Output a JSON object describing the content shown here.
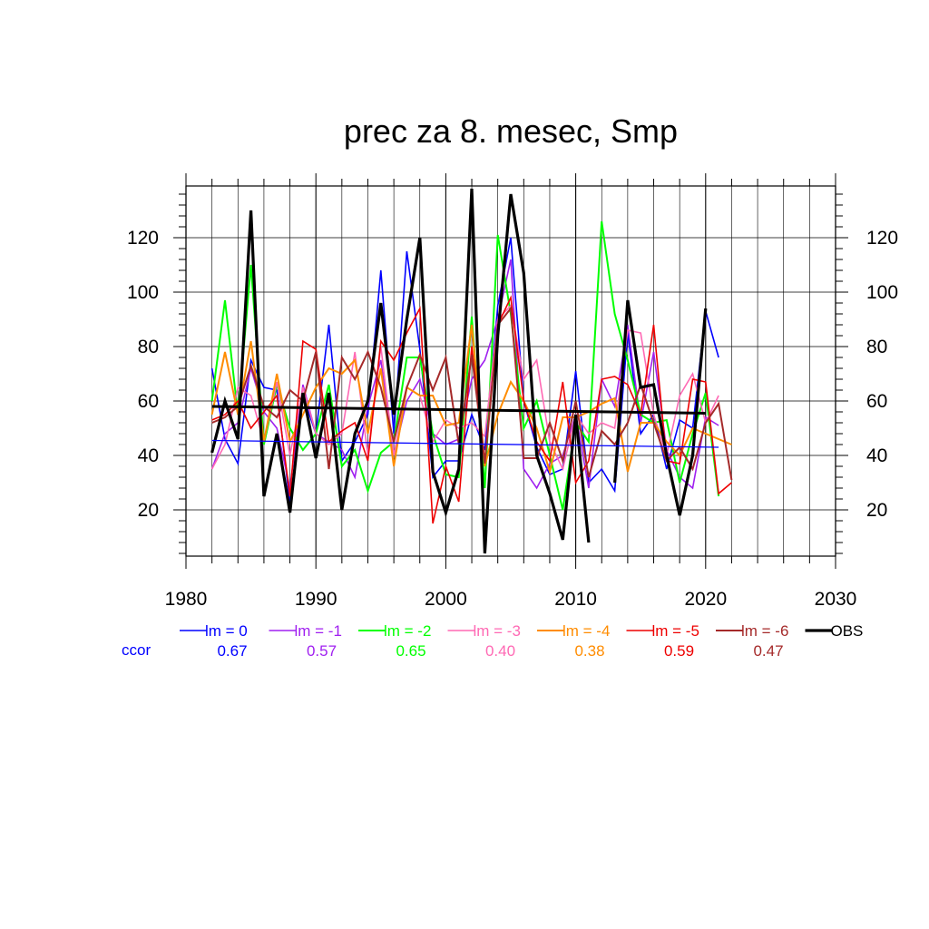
{
  "chart_data": {
    "type": "line",
    "title": "prec za 8. mesec, Smp",
    "xlim": [
      1980,
      2030
    ],
    "ylim": [
      3,
      139
    ],
    "x_ticks": [
      1980,
      1990,
      2000,
      2010,
      2020,
      2030
    ],
    "y_ticks": [
      20,
      40,
      60,
      80,
      100,
      120
    ],
    "grid": true,
    "legend_position": "bottom",
    "ccor_label": "ccor",
    "series": [
      {
        "name": "lm = 0",
        "ccor": "0.67",
        "color": "#0000ff",
        "width": 1.6,
        "x": [
          1982,
          1983,
          1984,
          1985,
          1986,
          1987,
          1988,
          1989,
          1990,
          1991,
          1992,
          1993,
          1994,
          1995,
          1996,
          1997,
          1998,
          1999,
          2000,
          2001,
          2002,
          2003,
          2004,
          2005,
          2006,
          2007,
          2008,
          2009,
          2010,
          2011,
          2012,
          2013,
          2014,
          2015,
          2016,
          2017,
          2018,
          2019,
          2020,
          2021
        ],
        "y": [
          72,
          46,
          37,
          75,
          65,
          64,
          22,
          62,
          48,
          88,
          38,
          45,
          55,
          108,
          48,
          115,
          79,
          32,
          38,
          38,
          55,
          42,
          95,
          120,
          60,
          43,
          33,
          35,
          71,
          30,
          35,
          27,
          85,
          48,
          55,
          35,
          53,
          50,
          93,
          76
        ]
      },
      {
        "name": "lm = -1",
        "ccor": "0.57",
        "color": "#a020f0",
        "width": 1.6,
        "x": [
          1982,
          1983,
          1984,
          1985,
          1986,
          1987,
          1988,
          1989,
          1990,
          1991,
          1992,
          1993,
          1994,
          1995,
          1996,
          1997,
          1998,
          1999,
          2000,
          2001,
          2002,
          2003,
          2004,
          2005,
          2006,
          2007,
          2008,
          2009,
          2010,
          2011,
          2012,
          2013,
          2014,
          2015,
          2016,
          2017,
          2018,
          2019,
          2020,
          2021
        ],
        "y": [
          35,
          48,
          52,
          72,
          56,
          50,
          28,
          66,
          48,
          45,
          42,
          32,
          58,
          75,
          40,
          60,
          68,
          48,
          44,
          46,
          68,
          75,
          90,
          112,
          35,
          28,
          37,
          40,
          55,
          28,
          68,
          58,
          88,
          52,
          78,
          42,
          32,
          28,
          54,
          51
        ]
      },
      {
        "name": "lm = -2",
        "ccor": "0.65",
        "color": "#00ff00",
        "width": 2.0,
        "x": [
          1982,
          1983,
          1984,
          1985,
          1986,
          1987,
          1988,
          1989,
          1990,
          1991,
          1992,
          1993,
          1994,
          1995,
          1996,
          1997,
          1998,
          1999,
          2000,
          2001,
          2002,
          2003,
          2004,
          2005,
          2006,
          2007,
          2008,
          2009,
          2010,
          2011,
          2012,
          2013,
          2014,
          2015,
          2016,
          2017,
          2018,
          2019,
          2020,
          2021
        ],
        "y": [
          60,
          97,
          55,
          110,
          44,
          66,
          50,
          42,
          48,
          66,
          36,
          42,
          27,
          41,
          45,
          76,
          76,
          48,
          33,
          32,
          91,
          28,
          121,
          92,
          50,
          60,
          40,
          20,
          52,
          45,
          126,
          92,
          75,
          55,
          52,
          53,
          30,
          48,
          63,
          25
        ]
      },
      {
        "name": "lm = -3",
        "ccor": "0.40",
        "color": "#ff69b4",
        "width": 1.6,
        "x": [
          1982,
          1983,
          1984,
          1985,
          1986,
          1987,
          1988,
          1989,
          1990,
          1991,
          1992,
          1993,
          1994,
          1995,
          1996,
          1997,
          1998,
          1999,
          2000,
          2001,
          2002,
          2003,
          2004,
          2005,
          2006,
          2007,
          2008,
          2009,
          2010,
          2011,
          2012,
          2013,
          2014,
          2015,
          2016,
          2017,
          2018,
          2019,
          2020,
          2021
        ],
        "y": [
          35,
          44,
          65,
          62,
          45,
          67,
          40,
          65,
          48,
          44,
          48,
          78,
          40,
          80,
          40,
          65,
          62,
          45,
          53,
          50,
          52,
          47,
          90,
          95,
          68,
          75,
          45,
          35,
          55,
          48,
          52,
          50,
          86,
          85,
          55,
          40,
          62,
          70,
          52,
          62
        ]
      },
      {
        "name": "lm = -4",
        "ccor": "0.38",
        "color": "#ff8c00",
        "width": 2.0,
        "x": [
          1982,
          1983,
          1984,
          1985,
          1986,
          1987,
          1988,
          1989,
          1990,
          1991,
          1992,
          1993,
          1994,
          1995,
          1996,
          1997,
          1998,
          1999,
          2000,
          2001,
          2002,
          2003,
          2004,
          2005,
          2006,
          2007,
          2008,
          2009,
          2010,
          2011,
          2012,
          2013,
          2014,
          2015,
          2016,
          2017,
          2018,
          2019,
          2020,
          2021,
          2022
        ],
        "y": [
          55,
          78,
          55,
          82,
          45,
          70,
          45,
          55,
          65,
          72,
          70,
          75,
          48,
          72,
          36,
          65,
          62,
          62,
          51,
          52,
          88,
          36,
          55,
          67,
          60,
          50,
          34,
          54,
          54,
          56,
          59,
          61,
          34,
          52,
          52,
          45,
          40,
          50,
          48,
          46,
          44
        ]
      },
      {
        "name": "lm = -5",
        "ccor": "0.59",
        "color": "#ee0000",
        "width": 1.6,
        "x": [
          1982,
          1983,
          1984,
          1985,
          1986,
          1987,
          1988,
          1989,
          1990,
          1991,
          1992,
          1993,
          1994,
          1995,
          1996,
          1997,
          1998,
          1999,
          2000,
          2001,
          2002,
          2003,
          2004,
          2005,
          2006,
          2007,
          2008,
          2009,
          2010,
          2011,
          2012,
          2013,
          2014,
          2015,
          2016,
          2017,
          2018,
          2019,
          2020,
          2021,
          2022
        ],
        "y": [
          53,
          55,
          60,
          50,
          56,
          62,
          25,
          82,
          79,
          45,
          49,
          52,
          38,
          82,
          75,
          85,
          94,
          15,
          36,
          23,
          80,
          38,
          88,
          98,
          60,
          45,
          38,
          67,
          30,
          38,
          68,
          69,
          66,
          55,
          88,
          38,
          37,
          68,
          67,
          26,
          30
        ]
      },
      {
        "name": "lm = -6",
        "ccor": "0.47",
        "color": "#a52a2a",
        "width": 2.0,
        "x": [
          1982,
          1983,
          1984,
          1985,
          1986,
          1987,
          1988,
          1989,
          1990,
          1991,
          1992,
          1993,
          1994,
          1995,
          1996,
          1997,
          1998,
          1999,
          2000,
          2001,
          2002,
          2003,
          2004,
          2005,
          2006,
          2007,
          2008,
          2009,
          2010,
          2011,
          2012,
          2013,
          2014,
          2015,
          2016,
          2017,
          2018,
          2019,
          2020,
          2021,
          2022
        ],
        "y": [
          52,
          54,
          58,
          73,
          58,
          54,
          64,
          60,
          78,
          35,
          76,
          68,
          78,
          65,
          45,
          65,
          77,
          64,
          76,
          44,
          77,
          37,
          88,
          94,
          39,
          39,
          52,
          38,
          60,
          32,
          49,
          44,
          52,
          66,
          52,
          38,
          43,
          35,
          52,
          59,
          31
        ]
      },
      {
        "name": "OBS",
        "ccor": "",
        "color": "#000000",
        "width": 3.2,
        "x": [
          1982,
          1983,
          1984,
          1985,
          1986,
          1987,
          1988,
          1989,
          1990,
          1991,
          1992,
          1993,
          1994,
          1995,
          1996,
          1997,
          1998,
          1999,
          2000,
          2001,
          2002,
          2003,
          2004,
          2005,
          2006,
          2007,
          2008,
          2009,
          2010,
          2011,
          null,
          2013,
          2014,
          2015,
          2016,
          2017,
          2018,
          2019,
          2020
        ],
        "y": [
          41,
          60,
          46,
          130,
          25,
          48,
          19,
          63,
          39,
          63,
          20,
          48,
          60,
          96,
          55,
          90,
          120,
          34,
          19,
          35,
          138,
          4,
          84,
          136,
          107,
          40,
          26,
          9,
          55,
          8,
          null,
          30,
          97,
          65,
          66,
          40,
          18,
          40,
          94
        ]
      }
    ],
    "trend_lines": [
      {
        "of": "lm = 0",
        "color": "#0000ff",
        "width": 1.3,
        "x": [
          1982,
          2021
        ],
        "y": [
          45.5,
          43
        ]
      },
      {
        "of": "OBS",
        "color": "#000000",
        "width": 3.0,
        "x": [
          1982,
          2020
        ],
        "y": [
          58,
          55.5
        ]
      }
    ]
  }
}
